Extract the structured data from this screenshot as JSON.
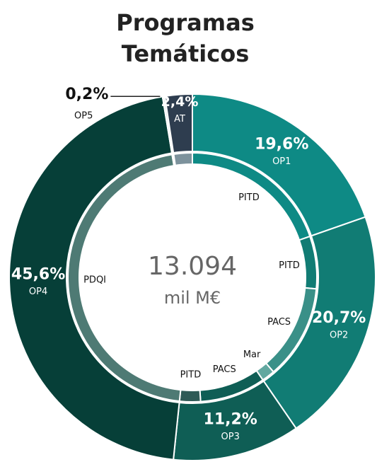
{
  "chart_data": {
    "type": "donut",
    "title": [
      "Programas",
      "Temáticos"
    ],
    "center_value": "13.094",
    "center_unit": "mil M€",
    "categories": [
      "OP1",
      "OP2",
      "OP3",
      "OP4",
      "OP5",
      "AT"
    ],
    "values": [
      19.6,
      20.7,
      11.2,
      45.6,
      0.2,
      2.4
    ],
    "value_labels": [
      "19,6%",
      "20,7%",
      "11,2%",
      "45,6%",
      "0,2%",
      "2,4%"
    ],
    "colors": [
      "#0e8a85",
      "#117c74",
      "#0f5e55",
      "#063f38",
      "#e8ecec",
      "#2e3d4f"
    ],
    "inner": {
      "categories": [
        "PITD",
        "PITD",
        "PACS",
        "Mar",
        "PACS",
        "PITD",
        "PDQI",
        null,
        null
      ],
      "values": [
        19.6,
        6.8,
        12.2,
        1.7,
        8.5,
        2.7,
        45.6,
        0.2,
        2.4
      ],
      "colors": [
        "#0e8a85",
        "#117c74",
        "#3a9088",
        "#62a8a0",
        "#0f5e55",
        "#2f5a56",
        "#4e7a74",
        "#c9d3d2",
        "#7d929c"
      ]
    }
  }
}
